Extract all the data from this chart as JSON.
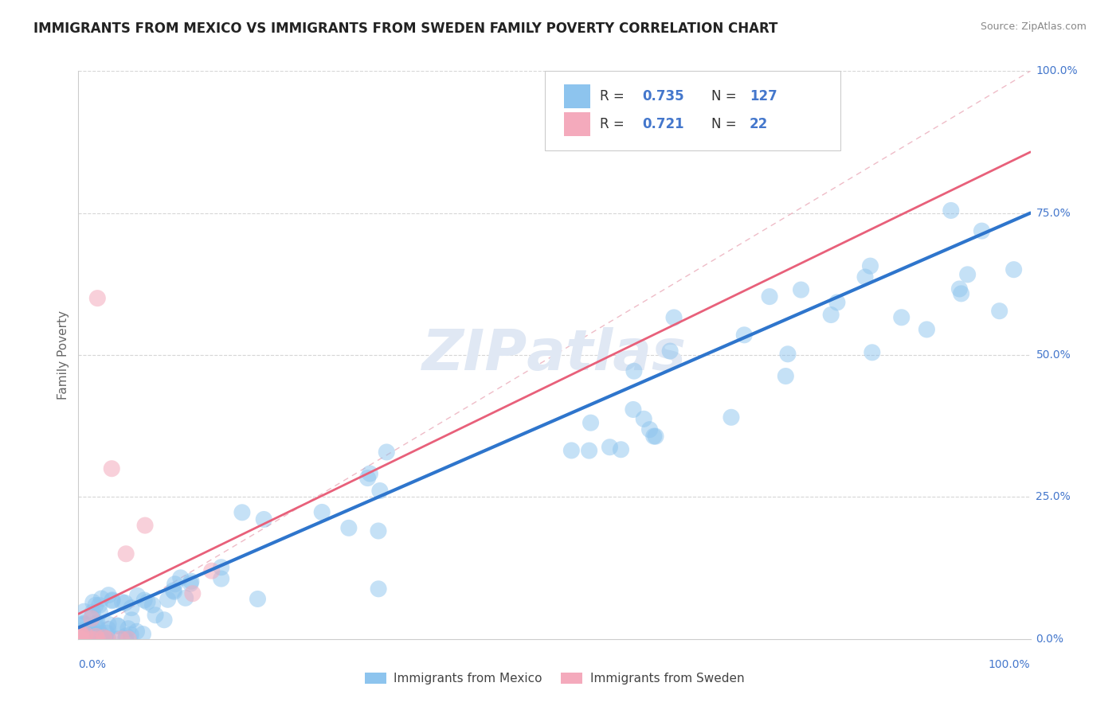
{
  "title": "IMMIGRANTS FROM MEXICO VS IMMIGRANTS FROM SWEDEN FAMILY POVERTY CORRELATION CHART",
  "source": "Source: ZipAtlas.com",
  "ylabel": "Family Poverty",
  "ytick_labels": [
    "0.0%",
    "25.0%",
    "50.0%",
    "75.0%",
    "100.0%"
  ],
  "ytick_positions": [
    0,
    25,
    50,
    75,
    100
  ],
  "mexico_R": 0.735,
  "mexico_N": 127,
  "sweden_R": 0.721,
  "sweden_N": 22,
  "mexico_color": "#8DC4EE",
  "sweden_color": "#F4AABC",
  "mexico_line_color": "#2E75CC",
  "sweden_line_color": "#E8607A",
  "background_color": "#FFFFFF",
  "grid_color": "#CCCCCC",
  "title_color": "#222222",
  "axis_label_color": "#4477CC",
  "watermark_color": "#E0E8F4",
  "legend_text_color": "#333333",
  "legend_value_color": "#4477CC"
}
